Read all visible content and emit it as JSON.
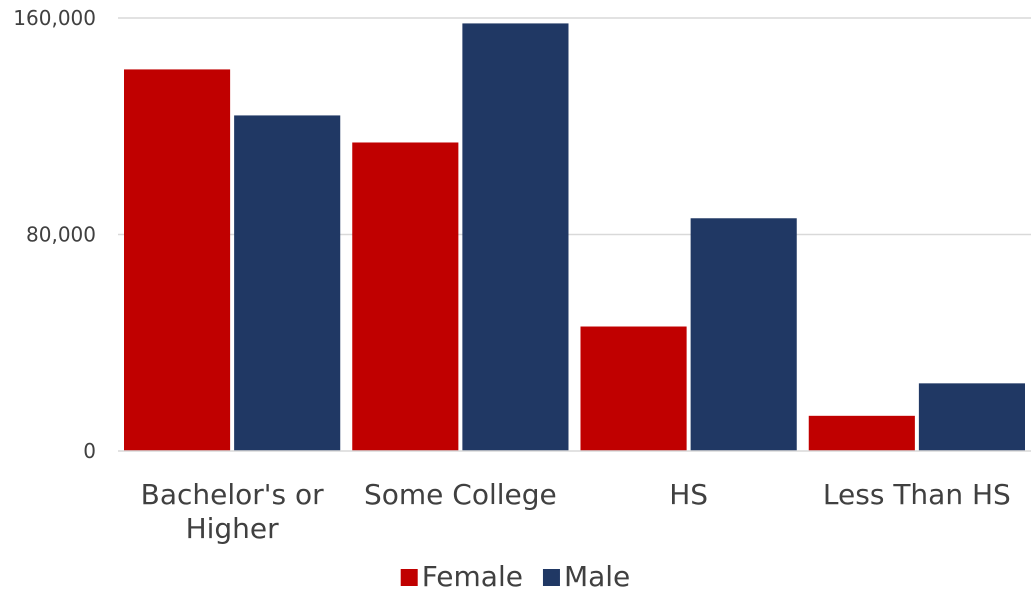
{
  "chart_data": {
    "type": "bar",
    "title": "",
    "xlabel": "",
    "ylabel": "",
    "categories": [
      [
        "Bachelor's or",
        "Higher"
      ],
      [
        "Some College"
      ],
      [
        "HS"
      ],
      [
        "Less Than HS"
      ]
    ],
    "series": [
      {
        "name": "Female",
        "color": "#C00000",
        "values": [
          141000,
          114000,
          46000,
          13000
        ]
      },
      {
        "name": "Male",
        "color": "#203864",
        "values": [
          124000,
          158000,
          86000,
          25000
        ]
      }
    ],
    "ylim": [
      0,
      160000
    ],
    "yticks": [
      {
        "value": 0,
        "label": "0"
      },
      {
        "value": 80000,
        "label": "80,000"
      },
      {
        "value": 160000,
        "label": "160,000"
      }
    ],
    "grid": true,
    "legend_position": "bottom"
  }
}
